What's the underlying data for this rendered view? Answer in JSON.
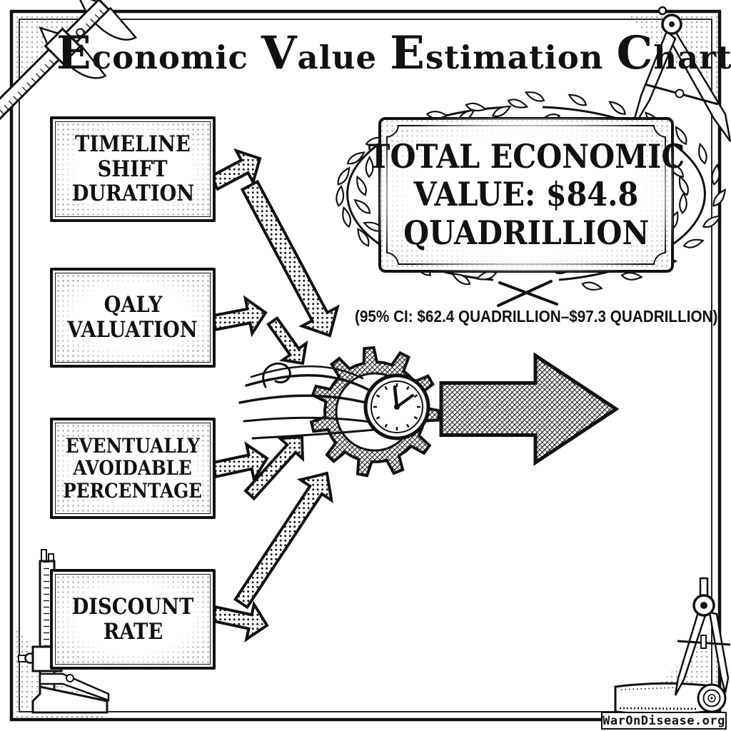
{
  "chart": {
    "title_words": [
      "Economic",
      "Value",
      "Estimation",
      "Chart"
    ]
  },
  "inputs": [
    {
      "lines": [
        "TIMELINE",
        "SHIFT",
        "DURATION"
      ]
    },
    {
      "lines": [
        "QALY",
        "VALUATION"
      ]
    },
    {
      "lines": [
        "EVENTUALLY",
        "AVOIDABLE",
        "PERCENTAGE"
      ]
    },
    {
      "lines": [
        "DISCOUNT",
        "RATE"
      ]
    }
  ],
  "result": {
    "lines": [
      "TOTAL ECONOMIC",
      "VALUE: $84.8",
      "QUADRILLION"
    ],
    "confidence_interval": "(95% CI: $62.4 QUADRILLION–$97.3 QUADRILLION)"
  },
  "branding": {
    "watermark": "WarOnDisease.org"
  },
  "icons": {
    "process": "gear-clock-icon",
    "award_frame": "laurel-wreath-icon",
    "corner_tools": [
      "caliper-icon-top-left",
      "compass-icon-top-right",
      "caliper-icon-bottom-left",
      "compass-icon-bottom-right"
    ],
    "scroll": "scroll-icon",
    "flow": "halftone-arrow-icons"
  },
  "colors": {
    "ink": "#111111",
    "paper": "#ffffff"
  }
}
